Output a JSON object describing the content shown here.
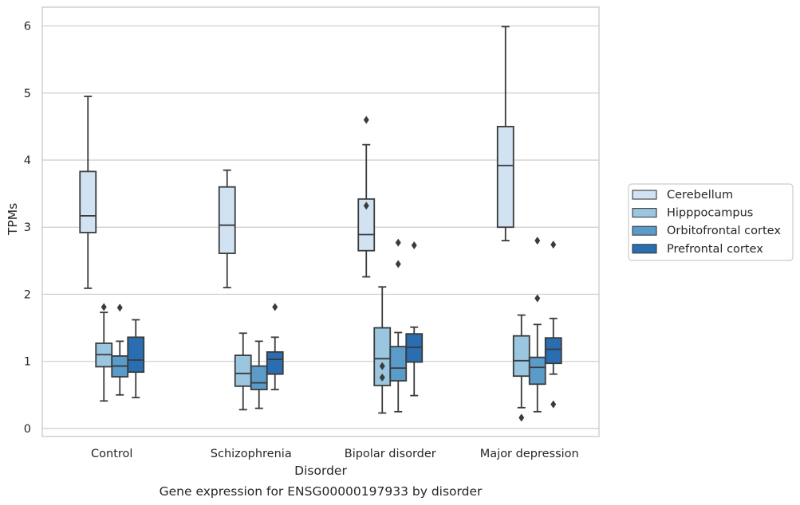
{
  "chart_data": {
    "type": "boxplot",
    "caption": "Gene expression for ENSG00000197933 by disorder",
    "xlabel": "Disorder",
    "ylabel": "TPMs",
    "ylim": [
      -0.12,
      6.28
    ],
    "yticks": [
      0,
      1,
      2,
      3,
      4,
      5,
      6
    ],
    "grid": "horizontal",
    "legend_position": "right",
    "categories": [
      "Control",
      "Schizophrenia",
      "Bipolar disorder",
      "Major depression"
    ],
    "series": [
      {
        "name": "Cerebellum",
        "color": "#d1e2f2",
        "boxes": [
          {
            "whislo": 2.09,
            "q1": 2.92,
            "med": 3.17,
            "q3": 3.83,
            "whishi": 4.95,
            "fliers": []
          },
          {
            "whislo": 2.1,
            "q1": 2.61,
            "med": 3.03,
            "q3": 3.6,
            "whishi": 3.85,
            "fliers": []
          },
          {
            "whislo": 2.26,
            "q1": 2.65,
            "med": 2.89,
            "q3": 3.42,
            "whishi": 4.23,
            "fliers": [
              4.6,
              3.32
            ]
          },
          {
            "whislo": 2.8,
            "q1": 3.0,
            "med": 3.92,
            "q3": 4.5,
            "whishi": 5.99,
            "fliers": []
          }
        ]
      },
      {
        "name": "Hipppocampus",
        "color": "#9ac6df",
        "boxes": [
          {
            "whislo": 0.41,
            "q1": 0.92,
            "med": 1.1,
            "q3": 1.27,
            "whishi": 1.73,
            "fliers": [
              1.81
            ]
          },
          {
            "whislo": 0.28,
            "q1": 0.63,
            "med": 0.82,
            "q3": 1.09,
            "whishi": 1.42,
            "fliers": []
          },
          {
            "whislo": 0.23,
            "q1": 0.64,
            "med": 1.04,
            "q3": 1.5,
            "whishi": 2.11,
            "fliers": [
              0.93,
              0.76
            ]
          },
          {
            "whislo": 0.31,
            "q1": 0.78,
            "med": 1.01,
            "q3": 1.38,
            "whishi": 1.69,
            "fliers": [
              0.16
            ]
          }
        ]
      },
      {
        "name": "Orbitofrontal cortex",
        "color": "#5a9bc9",
        "boxes": [
          {
            "whislo": 0.5,
            "q1": 0.77,
            "med": 0.93,
            "q3": 1.08,
            "whishi": 1.3,
            "fliers": [
              1.8
            ]
          },
          {
            "whislo": 0.3,
            "q1": 0.58,
            "med": 0.68,
            "q3": 0.93,
            "whishi": 1.3,
            "fliers": []
          },
          {
            "whislo": 0.25,
            "q1": 0.71,
            "med": 0.9,
            "q3": 1.22,
            "whishi": 1.43,
            "fliers": [
              2.77,
              2.45
            ]
          },
          {
            "whislo": 0.25,
            "q1": 0.66,
            "med": 0.91,
            "q3": 1.06,
            "whishi": 1.55,
            "fliers": [
              1.94,
              2.8
            ]
          }
        ]
      },
      {
        "name": "Prefrontal cortex",
        "color": "#2a6db0",
        "boxes": [
          {
            "whislo": 0.46,
            "q1": 0.84,
            "med": 1.02,
            "q3": 1.36,
            "whishi": 1.62,
            "fliers": []
          },
          {
            "whislo": 0.58,
            "q1": 0.81,
            "med": 1.03,
            "q3": 1.14,
            "whishi": 1.36,
            "fliers": [
              1.81
            ]
          },
          {
            "whislo": 0.49,
            "q1": 0.99,
            "med": 1.21,
            "q3": 1.41,
            "whishi": 1.51,
            "fliers": [
              2.73
            ]
          },
          {
            "whislo": 0.81,
            "q1": 0.97,
            "med": 1.18,
            "q3": 1.35,
            "whishi": 1.64,
            "fliers": [
              0.36,
              2.74
            ]
          }
        ]
      }
    ]
  }
}
